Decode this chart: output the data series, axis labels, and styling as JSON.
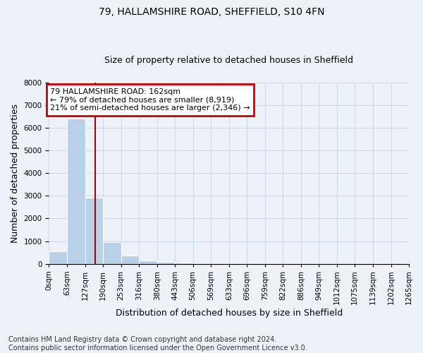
{
  "title1": "79, HALLAMSHIRE ROAD, SHEFFIELD, S10 4FN",
  "title2": "Size of property relative to detached houses in Sheffield",
  "xlabel": "Distribution of detached houses by size in Sheffield",
  "ylabel": "Number of detached properties",
  "bin_edges": [
    0,
    63,
    127,
    190,
    253,
    316,
    380,
    443,
    506,
    569,
    633,
    696,
    759,
    822,
    886,
    949,
    1012,
    1075,
    1139,
    1202,
    1265
  ],
  "bin_counts": [
    560,
    6400,
    2930,
    970,
    370,
    150,
    70,
    50,
    0,
    0,
    0,
    0,
    0,
    0,
    0,
    0,
    0,
    0,
    0,
    0
  ],
  "bar_color": "#b8d0e8",
  "grid_color": "#ccdaee",
  "property_size": 162,
  "vline_color": "#aa0000",
  "annotation_line1": "79 HALLAMSHIRE ROAD: 162sqm",
  "annotation_line2": "← 79% of detached houses are smaller (8,919)",
  "annotation_line3": "21% of semi-detached houses are larger (2,346) →",
  "annotation_box_color": "#cc0000",
  "ylim": [
    0,
    8000
  ],
  "yticks": [
    0,
    1000,
    2000,
    3000,
    4000,
    5000,
    6000,
    7000,
    8000
  ],
  "footer_line1": "Contains HM Land Registry data © Crown copyright and database right 2024.",
  "footer_line2": "Contains public sector information licensed under the Open Government Licence v3.0.",
  "bg_color": "#edf2f9",
  "plot_bg_color": "#edf2f9",
  "title_fontsize": 10,
  "subtitle_fontsize": 9,
  "tick_fontsize": 7.5,
  "label_fontsize": 9,
  "annotation_fontsize": 8,
  "footer_fontsize": 7
}
